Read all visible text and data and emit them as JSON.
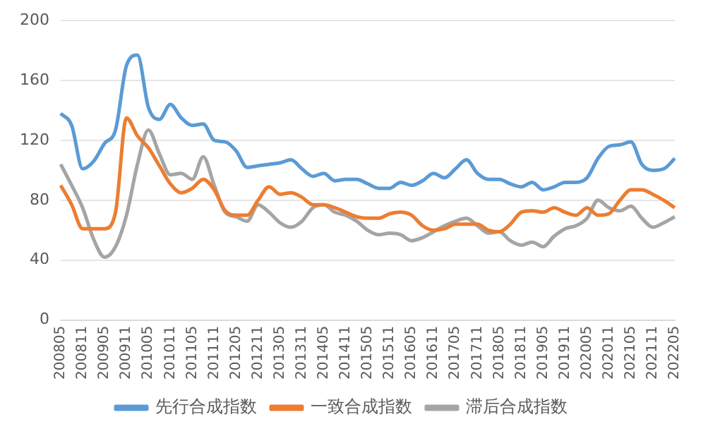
{
  "chart_data": {
    "type": "line",
    "categories": [
      "200805",
      null,
      "200811",
      null,
      "200905",
      null,
      "200911",
      null,
      "201005",
      null,
      "201011",
      null,
      "201105",
      null,
      "201111",
      null,
      "201205",
      null,
      "201211",
      null,
      "201305",
      null,
      "201311",
      null,
      "201405",
      null,
      "201411",
      null,
      "201505",
      null,
      "201511",
      null,
      "201605",
      null,
      "201611",
      null,
      "201705",
      null,
      "201711",
      null,
      "201805",
      null,
      "201811",
      null,
      "201905",
      null,
      "201911",
      null,
      "202005",
      null,
      "202011",
      null,
      "202105",
      null,
      "202111",
      null,
      "202205"
    ],
    "series": [
      {
        "name": "先行合成指数",
        "color": "#5b9bd5",
        "values": [
          138,
          130,
          101,
          106,
          118,
          127,
          170,
          177,
          142,
          134,
          144,
          135,
          130,
          131,
          120,
          119,
          113,
          102,
          103,
          104,
          105,
          107,
          101,
          96,
          98,
          93,
          94,
          94,
          91,
          88,
          88,
          92,
          90,
          93,
          98,
          95,
          101,
          107,
          98,
          94,
          94,
          91,
          89,
          92,
          87,
          89,
          92,
          92,
          95,
          108,
          116,
          117,
          119,
          104,
          100,
          101,
          108
        ]
      },
      {
        "name": "一致合成指数",
        "color": "#ed7d31",
        "values": [
          90,
          77,
          61,
          61,
          61,
          72,
          135,
          123,
          115,
          103,
          91,
          85,
          88,
          94,
          87,
          73,
          70,
          70,
          80,
          89,
          84,
          85,
          82,
          77,
          77,
          75,
          72,
          69,
          68,
          68,
          71,
          72,
          70,
          63,
          60,
          61,
          64,
          64,
          64,
          60,
          59,
          64,
          72,
          73,
          72,
          75,
          72,
          70,
          75,
          70,
          71,
          80,
          87,
          87,
          84,
          80,
          75
        ]
      },
      {
        "name": "滞后合成指数",
        "color": "#a5a5a5",
        "values": [
          104,
          90,
          75,
          54,
          42,
          49,
          70,
          104,
          127,
          111,
          97,
          98,
          94,
          109,
          90,
          72,
          69,
          66,
          77,
          72,
          65,
          62,
          66,
          75,
          77,
          72,
          70,
          66,
          60,
          57,
          58,
          57,
          53,
          55,
          59,
          63,
          66,
          68,
          63,
          58,
          59,
          53,
          50,
          52,
          49,
          56,
          61,
          63,
          68,
          80,
          75,
          73,
          76,
          68,
          62,
          65,
          69
        ]
      }
    ],
    "ylim": [
      0,
      200
    ],
    "yticks": [
      0,
      40,
      80,
      120,
      160,
      200
    ],
    "grid": "y",
    "legend": "bottom",
    "marker": "none",
    "line_style": "solid"
  }
}
